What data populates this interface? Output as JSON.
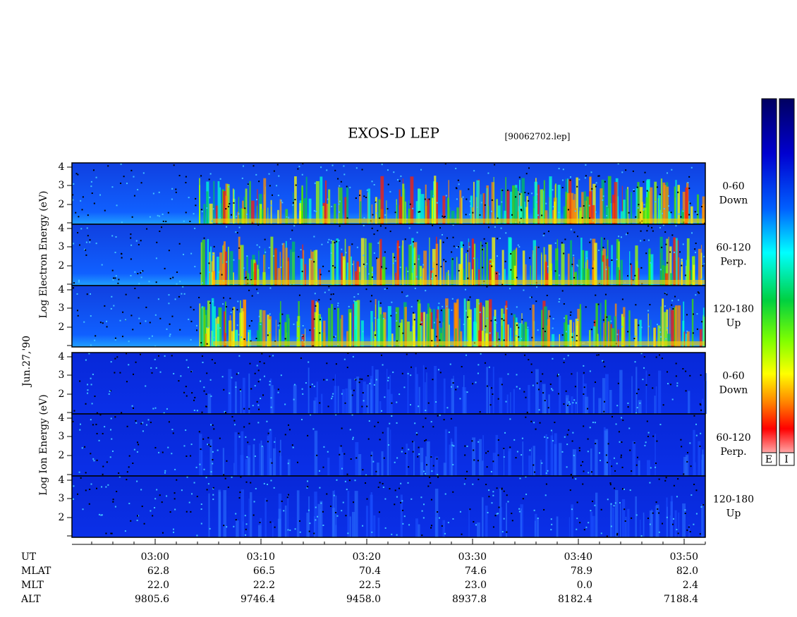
{
  "title": "EXOS-D LEP",
  "file": "[90062702.lep]",
  "date": "Jun.27,'90",
  "electron_axis": "Log Electron Energy (eV)",
  "ion_axis": "Log Ion Energy (eV)",
  "energy_ticks": [
    "4",
    "3",
    "2"
  ],
  "pitch_bands": [
    {
      "range": "0-60",
      "direction": "Down"
    },
    {
      "range": "60-120",
      "direction": "Perp."
    },
    {
      "range": "120-180",
      "direction": "Up"
    }
  ],
  "colorbar_labels": [
    "E",
    "I"
  ],
  "ephemeris": [
    {
      "label": "UT",
      "values": [
        "03:00",
        "03:10",
        "03:20",
        "03:30",
        "03:40",
        "03:50"
      ]
    },
    {
      "label": "MLAT",
      "values": [
        "62.8",
        "66.5",
        "70.4",
        "74.6",
        "78.9",
        "82.0"
      ]
    },
    {
      "label": "MLT",
      "values": [
        "22.0",
        "22.2",
        "22.5",
        "23.0",
        "0.0",
        "2.4"
      ]
    },
    {
      "label": "ALT",
      "values": [
        "9805.6",
        "9746.4",
        "9458.0",
        "8937.8",
        "8182.4",
        "7188.4"
      ]
    }
  ]
}
